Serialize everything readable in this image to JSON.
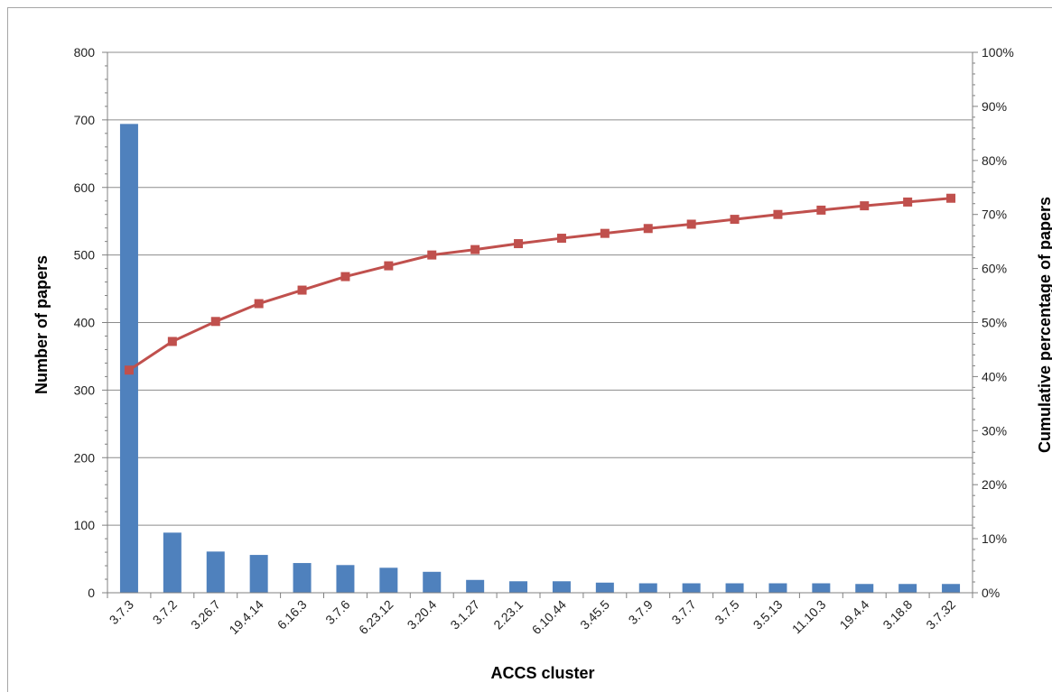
{
  "chart_data": {
    "type": "bar",
    "combo": "bar + cumulative line (Pareto)",
    "xlabel": "ACCS cluster",
    "ylabel": "Number of papers",
    "y2label": "Cumulative percentage of papers",
    "categories": [
      "3.7.3",
      "3.7.2",
      "3.26.7",
      "19.4.14",
      "6.16.3",
      "3.7.6",
      "6.23.12",
      "3.20.4",
      "3.1.27",
      "2.23.1",
      "6.10.44",
      "3.45.5",
      "3.7.9",
      "3.7.7",
      "3.7.5",
      "3.5.13",
      "11.10.3",
      "19.4.4",
      "3.18.8",
      "3.7.32"
    ],
    "series": [
      {
        "type": "bar",
        "axis": "left",
        "values": [
          694,
          89,
          61,
          56,
          44,
          41,
          37,
          31,
          19,
          17,
          17,
          15,
          14,
          14,
          14,
          14,
          14,
          13,
          13,
          13
        ]
      },
      {
        "type": "line",
        "axis": "right",
        "values": [
          41.2,
          46.5,
          50.2,
          53.5,
          56.0,
          58.5,
          60.5,
          62.5,
          63.5,
          64.6,
          65.6,
          66.5,
          67.4,
          68.2,
          69.1,
          70.0,
          70.8,
          71.6,
          72.3,
          73.0
        ]
      }
    ],
    "ylim": [
      0,
      800
    ],
    "yticks": [
      0,
      100,
      200,
      300,
      400,
      500,
      600,
      700,
      800
    ],
    "y2lim": [
      0,
      100
    ],
    "y2ticks": [
      "0%",
      "10%",
      "20%",
      "30%",
      "40%",
      "50%",
      "60%",
      "70%",
      "80%",
      "90%",
      "100%"
    ],
    "grid": true,
    "colors": {
      "bar": "#4f81bd",
      "line": "#c0504d",
      "grid": "#8c8c8c",
      "axis": "#808080"
    }
  }
}
